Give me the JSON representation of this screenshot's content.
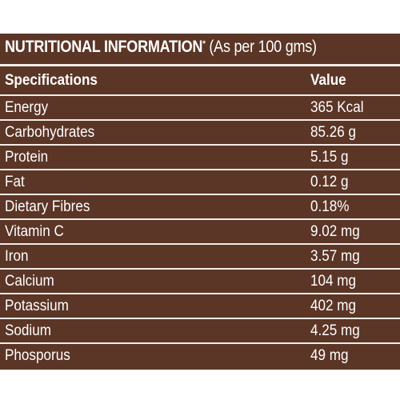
{
  "title": {
    "main": "NUTRITIONAL INFORMATION",
    "sup": "*",
    "rest": "(As per 100 gms)"
  },
  "table": {
    "headers": {
      "spec": "Specifications",
      "value": "Value"
    },
    "rows": [
      {
        "spec": "Energy",
        "value": "365 Kcal"
      },
      {
        "spec": "Carbohydrates",
        "value": "85.26 g"
      },
      {
        "spec": "Protein",
        "value": "5.15 g"
      },
      {
        "spec": "Fat",
        "value": "0.12 g"
      },
      {
        "spec": "Dietary Fibres",
        "value": "0.18%"
      },
      {
        "spec": "Vitamin C",
        "value": "9.02 mg"
      },
      {
        "spec": "Iron",
        "value": "3.57 mg"
      },
      {
        "spec": "Calcium",
        "value": "104 mg"
      },
      {
        "spec": "Potassium",
        "value": "402 mg"
      },
      {
        "spec": "Sodium",
        "value": "4.25 mg"
      },
      {
        "spec": "Phosporus",
        "value": "49 mg"
      }
    ]
  },
  "colors": {
    "background": "#5b3526",
    "text": "#ffffff",
    "divider": "#f3ece7"
  }
}
